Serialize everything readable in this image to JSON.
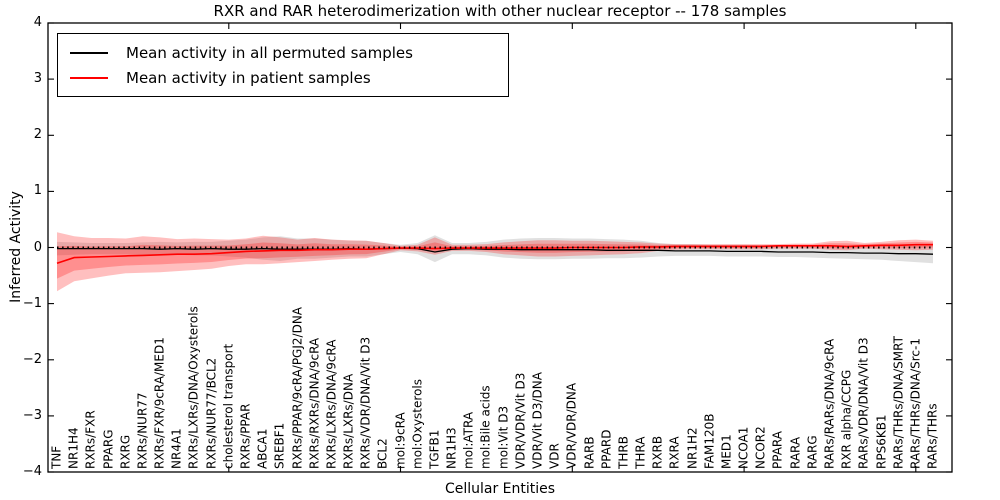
{
  "chart_data": {
    "type": "line",
    "title": "RXR and RAR heterodimerization with other nuclear receptor -- 178 samples",
    "xlabel": "Cellular Entities",
    "ylabel": "Inferred Activity",
    "ylim": [
      -4,
      4
    ],
    "yticks": [
      4,
      3,
      2,
      1,
      0,
      -1,
      -2,
      -3,
      -4
    ],
    "yticklabels": [
      "4",
      "3",
      "2",
      "1",
      "0",
      "−1",
      "−2",
      "−3",
      "−4"
    ],
    "xtick_indices": [
      10,
      20,
      30,
      40,
      50
    ],
    "grid": false,
    "legend_position": "upper left",
    "zero_line": {
      "style": "dashed",
      "color": "#000000"
    },
    "categories": [
      "TNF",
      "NR1H4",
      "RXRs/FXR",
      "PPARG",
      "RXRG",
      "RXRs/NUR77",
      "RXRs/FXR/9cRA/MED1",
      "NR4A1",
      "RXRs/LXRs/DNA/Oxysterols",
      "RXRs/NUR77/BCL2",
      "cholesterol transport",
      "RXRs/PPAR",
      "ABCA1",
      "SREBF1",
      "RXRs/PPAR/9cRA/PGJ2/DNA",
      "RXRs/RXRs/DNA/9cRA",
      "RXRs/LXRs/DNA/9cRA",
      "RXRs/LXRs/DNA",
      "RXRs/VDR/DNA/Vit D3",
      "BCL2",
      "mol:9cRA",
      "mol:Oxysterols",
      "TGFB1",
      "NR1H3",
      "mol:ATRA",
      "mol:Bile acids",
      "mol:Vit D3",
      "VDR/VDR/Vit D3",
      "VDR/Vit D3/DNA",
      "VDR",
      "VDR/VDR/DNA",
      "RARB",
      "PPARD",
      "THRB",
      "THRA",
      "RXRB",
      "RXRA",
      "NR1H2",
      "FAM120B",
      "MED1",
      "NCOA1",
      "NCOR2",
      "PPARA",
      "RARA",
      "RARG",
      "RARs/RARs/DNA/9cRA",
      "RXR alpha/CCPG",
      "RARs/VDR/DNA/Vit D3",
      "RPS6KB1",
      "RARs/THRs/DNA/SMRT",
      "RARs/THRs/DNA/Src-1",
      "RARs/THRs"
    ],
    "series": [
      {
        "name": "Mean activity in all permuted samples",
        "color": "#000000",
        "band_color": "rgba(0,0,0,0.12)",
        "values": [
          -0.02,
          -0.02,
          -0.02,
          -0.02,
          -0.02,
          -0.02,
          -0.03,
          -0.02,
          -0.03,
          -0.02,
          -0.03,
          -0.03,
          -0.02,
          -0.03,
          -0.03,
          -0.03,
          -0.03,
          -0.02,
          -0.03,
          -0.02,
          -0.01,
          -0.02,
          -0.08,
          -0.03,
          -0.02,
          -0.03,
          -0.03,
          -0.04,
          -0.04,
          -0.04,
          -0.04,
          -0.04,
          -0.05,
          -0.05,
          -0.05,
          -0.05,
          -0.06,
          -0.06,
          -0.06,
          -0.07,
          -0.07,
          -0.07,
          -0.08,
          -0.08,
          -0.08,
          -0.09,
          -0.09,
          -0.1,
          -0.1,
          -0.11,
          -0.11,
          -0.12
        ],
        "band_upper": [
          0.1,
          0.09,
          0.08,
          0.08,
          0.08,
          0.09,
          0.1,
          0.09,
          0.1,
          0.1,
          0.12,
          0.14,
          0.18,
          0.2,
          0.16,
          0.16,
          0.14,
          0.12,
          0.12,
          0.08,
          0.05,
          0.08,
          0.22,
          0.08,
          0.08,
          0.1,
          0.14,
          0.16,
          0.17,
          0.17,
          0.16,
          0.16,
          0.15,
          0.14,
          0.12,
          0.08,
          0.06,
          0.06,
          0.05,
          0.05,
          0.05,
          0.04,
          0.04,
          0.04,
          0.04,
          0.04,
          0.03,
          0.03,
          0.03,
          0.03,
          0.03,
          0.03
        ],
        "band_lower": [
          -0.14,
          -0.13,
          -0.12,
          -0.12,
          -0.12,
          -0.13,
          -0.14,
          -0.13,
          -0.14,
          -0.14,
          -0.16,
          -0.18,
          -0.22,
          -0.24,
          -0.2,
          -0.2,
          -0.18,
          -0.16,
          -0.16,
          -0.12,
          -0.08,
          -0.12,
          -0.26,
          -0.12,
          -0.12,
          -0.14,
          -0.18,
          -0.2,
          -0.21,
          -0.21,
          -0.2,
          -0.2,
          -0.19,
          -0.19,
          -0.18,
          -0.16,
          -0.15,
          -0.15,
          -0.15,
          -0.16,
          -0.16,
          -0.16,
          -0.17,
          -0.17,
          -0.18,
          -0.19,
          -0.2,
          -0.21,
          -0.22,
          -0.24,
          -0.26,
          -0.28
        ]
      },
      {
        "name": "Mean activity in patient samples",
        "color": "#ff0000",
        "band_color": "rgba(255,0,0,0.25)",
        "values": [
          -0.28,
          -0.18,
          -0.17,
          -0.16,
          -0.15,
          -0.14,
          -0.13,
          -0.12,
          -0.12,
          -0.11,
          -0.09,
          -0.07,
          -0.06,
          -0.05,
          -0.05,
          -0.04,
          -0.04,
          -0.03,
          -0.03,
          -0.02,
          -0.01,
          -0.01,
          -0.02,
          -0.01,
          -0.01,
          -0.01,
          -0.01,
          -0.01,
          -0.01,
          -0.01,
          0.0,
          0.0,
          0.0,
          0.0,
          0.01,
          0.01,
          0.02,
          0.02,
          0.02,
          0.02,
          0.02,
          0.02,
          0.03,
          0.03,
          0.03,
          0.03,
          0.02,
          0.03,
          0.04,
          0.04,
          0.05,
          0.05
        ],
        "band_upper": [
          0.27,
          0.2,
          0.17,
          0.17,
          0.16,
          0.2,
          0.18,
          0.15,
          0.16,
          0.15,
          0.14,
          0.16,
          0.21,
          0.18,
          0.14,
          0.17,
          0.14,
          0.13,
          0.12,
          0.08,
          0.03,
          0.05,
          0.18,
          0.05,
          0.05,
          0.06,
          0.09,
          0.11,
          0.13,
          0.13,
          0.12,
          0.12,
          0.11,
          0.1,
          0.09,
          0.07,
          0.06,
          0.06,
          0.06,
          0.06,
          0.06,
          0.06,
          0.06,
          0.07,
          0.07,
          0.11,
          0.12,
          0.08,
          0.1,
          0.13,
          0.14,
          0.12
        ],
        "band_lower": [
          -0.78,
          -0.6,
          -0.55,
          -0.5,
          -0.46,
          -0.45,
          -0.44,
          -0.42,
          -0.4,
          -0.38,
          -0.33,
          -0.3,
          -0.3,
          -0.28,
          -0.26,
          -0.24,
          -0.22,
          -0.2,
          -0.19,
          -0.12,
          -0.05,
          -0.07,
          -0.13,
          -0.06,
          -0.06,
          -0.08,
          -0.12,
          -0.14,
          -0.16,
          -0.16,
          -0.15,
          -0.14,
          -0.13,
          -0.12,
          -0.1,
          -0.06,
          -0.04,
          -0.03,
          -0.03,
          -0.03,
          -0.03,
          -0.03,
          -0.02,
          -0.02,
          -0.02,
          -0.04,
          -0.05,
          -0.02,
          -0.03,
          -0.04,
          -0.05,
          -0.04
        ]
      }
    ]
  }
}
